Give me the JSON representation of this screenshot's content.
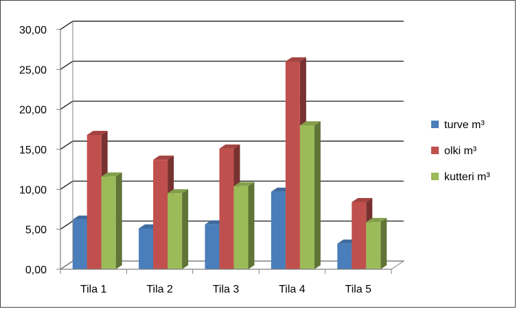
{
  "chart_data": {
    "type": "bar",
    "style": "3d-clustered-column",
    "categories": [
      "Tila 1",
      "Tila 2",
      "Tila 3",
      "Tila 4",
      "Tila 5"
    ],
    "series": [
      {
        "name": "turve m³",
        "color": "#4a7ebb",
        "values": [
          6.2,
          5.1,
          5.6,
          9.7,
          3.2
        ]
      },
      {
        "name": "olki m³",
        "color": "#c0504d",
        "values": [
          16.8,
          13.7,
          15.1,
          26.0,
          8.4
        ]
      },
      {
        "name": "kutteri m³",
        "color": "#9bbb59",
        "values": [
          11.6,
          9.5,
          10.4,
          18.0,
          5.9
        ]
      }
    ],
    "ylim": [
      0,
      30
    ],
    "yticks": [
      "0,00",
      "5,00",
      "10,00",
      "15,00",
      "20,00",
      "25,00",
      "30,00"
    ],
    "grid": true,
    "legend_position": "right",
    "title": "",
    "xlabel": "",
    "ylabel": ""
  }
}
